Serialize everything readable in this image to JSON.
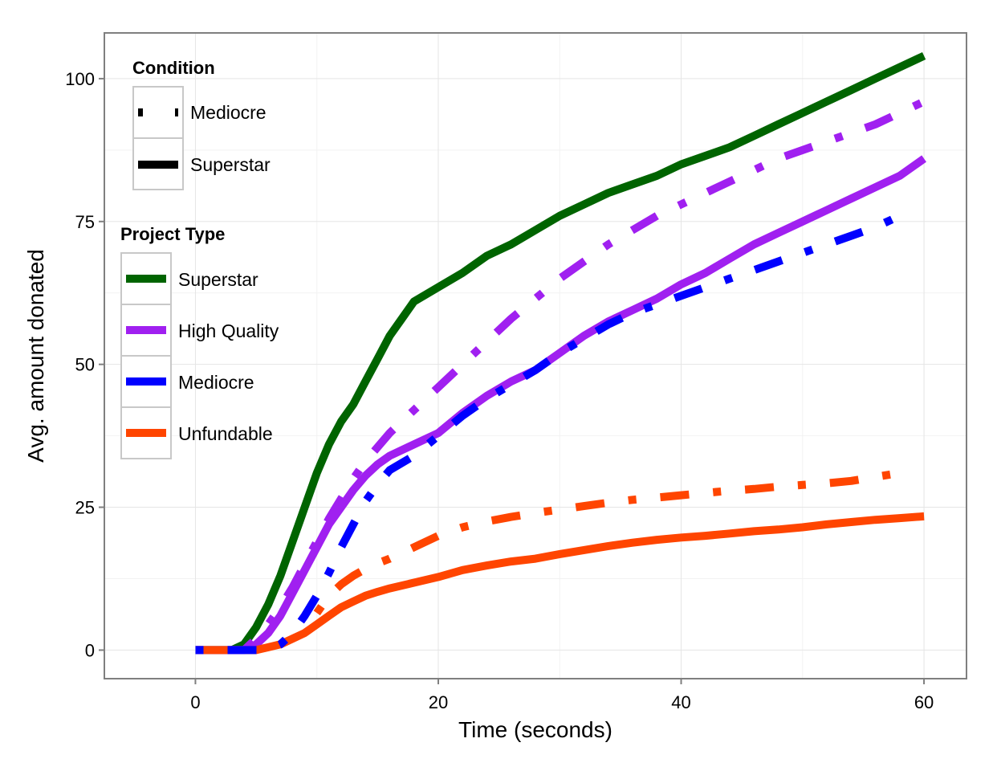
{
  "chart_data": {
    "type": "line",
    "xlabel": "Time (seconds)",
    "ylabel": "Avg. amount donated",
    "xlim": [
      -7.5,
      63.5
    ],
    "ylim": [
      -5,
      108
    ],
    "xticks": [
      0,
      20,
      40,
      60
    ],
    "yticks": [
      0,
      25,
      50,
      75,
      100
    ],
    "grid": true,
    "legend_placement": "top-left, inside plot",
    "condition_legend": {
      "title": "Condition",
      "entries": [
        {
          "label": "Mediocre",
          "linetype": "dotdash"
        },
        {
          "label": "Superstar",
          "linetype": "solid"
        }
      ]
    },
    "project_type_legend": {
      "title": "Project Type",
      "entries": [
        {
          "label": "Superstar",
          "color": "#006400"
        },
        {
          "label": "High Quality",
          "color": "#A020F0"
        },
        {
          "label": "Mediocre",
          "color": "#0000FF"
        },
        {
          "label": "Unfundable",
          "color": "#FF4500"
        }
      ]
    },
    "series": [
      {
        "project_type": "Superstar",
        "condition": "Superstar",
        "color": "#006400",
        "linetype": "solid",
        "x": [
          0,
          3,
          4,
          5,
          6,
          7,
          8,
          9,
          10,
          11,
          12,
          13,
          14,
          15,
          16,
          17,
          18,
          20,
          22,
          24,
          26,
          28,
          30,
          32,
          34,
          36,
          38,
          40,
          42,
          44,
          46,
          48,
          50,
          52,
          54,
          56,
          58,
          60
        ],
        "y": [
          0,
          0,
          1,
          4,
          8,
          13,
          19,
          25,
          31,
          36,
          40,
          43,
          47,
          51,
          55,
          58,
          61,
          63.5,
          66,
          69,
          71,
          73.5,
          76,
          78,
          80,
          81.5,
          83,
          85,
          86.5,
          88,
          90,
          92,
          94,
          96,
          98,
          100,
          102,
          104
        ]
      },
      {
        "project_type": "High Quality",
        "condition": "Superstar",
        "color": "#A020F0",
        "linetype": "solid",
        "x": [
          0,
          4,
          5,
          6,
          7,
          8,
          9,
          10,
          11,
          12,
          13,
          14,
          15,
          16,
          18,
          20,
          22,
          24,
          26,
          28,
          30,
          32,
          34,
          36,
          38,
          40,
          42,
          44,
          46,
          48,
          50,
          52,
          54,
          56,
          58,
          60
        ],
        "y": [
          0,
          0,
          1,
          3,
          6,
          10,
          14,
          18,
          22,
          25,
          28,
          30.5,
          32.5,
          34,
          36,
          38,
          41.5,
          44.5,
          47,
          49,
          52,
          55,
          57.5,
          59.5,
          61.5,
          64,
          66,
          68.5,
          71,
          73,
          75,
          77,
          79,
          81,
          83,
          86
        ]
      },
      {
        "project_type": "Unfundable",
        "condition": "Superstar",
        "color": "#FF4500",
        "linetype": "solid",
        "x": [
          0,
          5,
          6,
          7,
          8,
          9,
          10,
          11,
          12,
          13,
          14,
          15,
          16,
          18,
          20,
          22,
          24,
          26,
          28,
          30,
          32,
          34,
          36,
          38,
          40,
          42,
          44,
          46,
          48,
          50,
          52,
          54,
          56,
          58,
          60
        ],
        "y": [
          0,
          0,
          0.5,
          1,
          2,
          3,
          4.5,
          6,
          7.5,
          8.5,
          9.5,
          10.2,
          10.8,
          11.8,
          12.8,
          14,
          14.8,
          15.5,
          16,
          16.8,
          17.5,
          18.2,
          18.8,
          19.3,
          19.7,
          20,
          20.4,
          20.8,
          21.1,
          21.5,
          22,
          22.4,
          22.8,
          23.1,
          23.4
        ]
      },
      {
        "project_type": "High Quality",
        "condition": "Mediocre",
        "color": "#A020F0",
        "linetype": "dotdash",
        "x": [
          0,
          4,
          5,
          6,
          7,
          8,
          9,
          10,
          11,
          12,
          13,
          14,
          15,
          16,
          18,
          20,
          22,
          24,
          26,
          28,
          30,
          32,
          34,
          36,
          38,
          40,
          42,
          44,
          46,
          48,
          50,
          52,
          54,
          56,
          58,
          60
        ],
        "y": [
          0,
          0,
          2,
          4.5,
          7.5,
          11,
          15,
          19,
          23,
          26.5,
          30,
          33,
          35.5,
          38,
          42,
          46,
          50,
          54,
          58,
          61.5,
          65,
          68,
          71,
          73.5,
          76,
          78,
          80,
          82,
          84,
          86,
          87.5,
          89,
          90.5,
          92,
          94,
          96
        ]
      },
      {
        "project_type": "Mediocre",
        "condition": "Mediocre",
        "color": "#0000FF",
        "linetype": "dotdash",
        "x": [
          0,
          6,
          7,
          8,
          9,
          10,
          11,
          12,
          13,
          14,
          15,
          16,
          18,
          20,
          22,
          24,
          26,
          28,
          30,
          32,
          34,
          36,
          38,
          40,
          42,
          44,
          46,
          48,
          50,
          52,
          54,
          56,
          58
        ],
        "y": [
          0,
          0,
          1,
          3,
          6,
          9.5,
          13.5,
          18,
          22,
          26,
          29,
          31.5,
          34,
          37.5,
          41,
          44,
          46.5,
          49,
          52,
          54.5,
          57,
          59,
          60.5,
          62,
          63.5,
          65,
          66.5,
          68,
          69.5,
          71,
          72.5,
          74,
          76
        ]
      },
      {
        "project_type": "Unfundable",
        "condition": "Mediocre",
        "color": "#FF4500",
        "linetype": "dotdash",
        "x": [
          10,
          11,
          12,
          13,
          14,
          15,
          16,
          18,
          20,
          22,
          24,
          26,
          28,
          30,
          32,
          34,
          36,
          38,
          40,
          42,
          44,
          46,
          48,
          50,
          52,
          54,
          56,
          58
        ],
        "y": [
          6.5,
          9.5,
          11.5,
          13,
          14.2,
          15.2,
          16,
          18,
          20,
          21.5,
          22.5,
          23.3,
          24,
          24.6,
          25.2,
          25.8,
          26.3,
          26.7,
          27.1,
          27.5,
          27.9,
          28.2,
          28.6,
          28.9,
          29.2,
          29.6,
          30.3,
          31
        ]
      }
    ]
  }
}
